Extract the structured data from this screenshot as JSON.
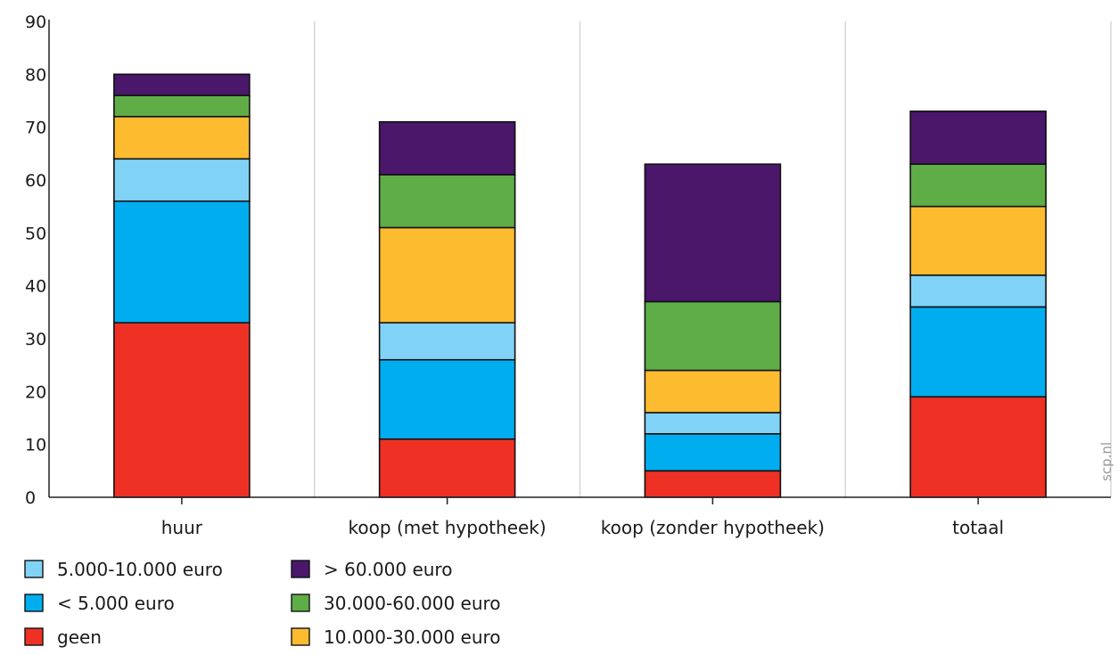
{
  "chart_data": {
    "type": "bar",
    "stacked": true,
    "title": "",
    "xlabel": "",
    "ylabel": "",
    "ylim": [
      0,
      90
    ],
    "yticks": [
      "0",
      "10",
      "20",
      "30",
      "40",
      "50",
      "60",
      "70",
      "80",
      "90"
    ],
    "grid": "vertical lines between categories",
    "legend_position": "bottom-left",
    "categories": [
      "huur",
      "koop (met hypotheek)",
      "koop (zonder hypotheek)",
      "totaal"
    ],
    "series": [
      {
        "name": "geen",
        "color": "#ee3124",
        "values": [
          33,
          11,
          5,
          19
        ]
      },
      {
        "name": "< 5.000 euro",
        "color": "#00aeef",
        "values": [
          23,
          15,
          7,
          17
        ]
      },
      {
        "name": "5.000-10.000 euro",
        "color": "#80d3f7",
        "values": [
          8,
          7,
          4,
          6
        ]
      },
      {
        "name": "10.000-30.000 euro",
        "color": "#fdbb30",
        "values": [
          8,
          18,
          8,
          13
        ]
      },
      {
        "name": "30.000-60.000 euro",
        "color": "#5fad47",
        "values": [
          4,
          10,
          13,
          8
        ]
      },
      {
        "name": "> 60.000 euro",
        "color": "#4a176b",
        "values": [
          4,
          10,
          26,
          10
        ]
      }
    ],
    "legend_order": [
      "5.000-10.000 euro",
      "> 60.000 euro",
      "< 5.000 euro",
      "30.000-60.000 euro",
      "geen",
      "10.000-30.000 euro"
    ]
  },
  "watermark": "scp.nl"
}
